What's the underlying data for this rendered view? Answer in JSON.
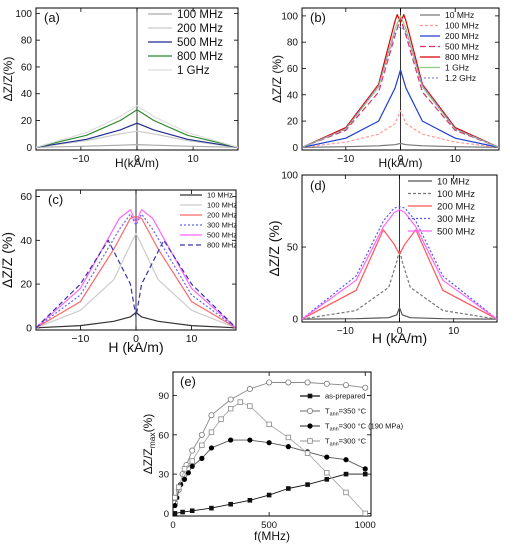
{
  "chart_data": [
    {
      "panel": "(a)",
      "type": "line",
      "xlabel": "H(kA/m)",
      "ylabel": "ΔZ/Z(%)",
      "xlim": [
        -18,
        18
      ],
      "ylim": [
        -2,
        104
      ],
      "xticks": [
        -10,
        0,
        10
      ],
      "yticks": [
        0,
        20,
        40,
        60,
        80,
        100
      ],
      "legend_position": "top-right",
      "series": [
        {
          "name": "100 MHz",
          "color": "#aaaaaa",
          "dash": "",
          "x": [
            -18,
            -9,
            -3,
            0,
            3,
            9,
            18
          ],
          "y": [
            0,
            0.8,
            1.6,
            2,
            1.6,
            0.8,
            0
          ]
        },
        {
          "name": "200 MHz",
          "color": "#cccccc",
          "dash": "",
          "x": [
            -18,
            -9,
            -3,
            0,
            3,
            9,
            18
          ],
          "y": [
            0,
            5,
            10,
            12,
            10,
            5,
            0
          ]
        },
        {
          "name": "500 MHz",
          "color": "#1f2a8c",
          "dash": "",
          "x": [
            -18,
            -9,
            -3,
            0,
            3,
            9,
            18
          ],
          "y": [
            0,
            6,
            13,
            18,
            13,
            6,
            0
          ]
        },
        {
          "name": "800 MHz",
          "color": "#2e8b2e",
          "dash": "",
          "x": [
            -18,
            -9,
            -3,
            0,
            3,
            9,
            18
          ],
          "y": [
            0,
            9,
            20,
            28,
            20,
            9,
            0
          ]
        },
        {
          "name": "1 GHz",
          "color": "#dddddd",
          "dash": "",
          "x": [
            -18,
            -9,
            -3,
            0,
            3,
            9,
            18
          ],
          "y": [
            0,
            11,
            23,
            31,
            23,
            11,
            0
          ]
        }
      ]
    },
    {
      "panel": "(b)",
      "type": "line",
      "xlabel": "H(kA/m)",
      "ylabel": "ΔZ/Z (%)",
      "xlim": [
        -18,
        18
      ],
      "ylim": [
        -2,
        106
      ],
      "xticks": [
        -10,
        0,
        10
      ],
      "yticks": [
        0,
        20,
        40,
        60,
        80,
        100
      ],
      "legend_position": "top-right",
      "series": [
        {
          "name": "10 MHz",
          "color": "#777777",
          "dash": "",
          "x": [
            -18,
            -10,
            -4,
            -1,
            0,
            1,
            4,
            10,
            18
          ],
          "y": [
            0,
            0.5,
            1.2,
            2,
            3,
            2,
            1.2,
            0.5,
            0
          ]
        },
        {
          "name": "100 MHz",
          "color": "#ff9a9a",
          "dash": "3,2",
          "x": [
            -18,
            -10,
            -4,
            -1,
            0,
            1,
            4,
            10,
            18
          ],
          "y": [
            0,
            4,
            10,
            18,
            28,
            18,
            10,
            4,
            0
          ]
        },
        {
          "name": "200 MHz",
          "color": "#1f3fd0",
          "dash": "",
          "x": [
            -18,
            -10,
            -4,
            -1,
            0,
            1,
            4,
            10,
            18
          ],
          "y": [
            0,
            7,
            20,
            45,
            59,
            45,
            20,
            7,
            0
          ]
        },
        {
          "name": "500 MHz",
          "color": "#e0306a",
          "dash": "6,3",
          "x": [
            -18,
            -10,
            -4,
            -1,
            0,
            1,
            4,
            10,
            18
          ],
          "y": [
            0,
            13,
            42,
            85,
            98,
            85,
            42,
            13,
            0
          ]
        },
        {
          "name": "800 MHz",
          "color": "#dd0000",
          "dash": "",
          "x": [
            -18,
            -10,
            -4,
            -1,
            -0.6,
            0,
            0.6,
            1,
            4,
            10,
            18
          ],
          "y": [
            0,
            15,
            48,
            96,
            101,
            95,
            101,
            96,
            48,
            15,
            0
          ]
        },
        {
          "name": "1 GHz",
          "color": "#88cc88",
          "dash": "",
          "x": [
            -18,
            -10,
            -4,
            -1,
            0,
            1,
            4,
            10,
            18
          ],
          "y": [
            0,
            14,
            46,
            90,
            100,
            90,
            46,
            14,
            0
          ]
        },
        {
          "name": "1.2 GHz",
          "color": "#8888dd",
          "dash": "2,2",
          "x": [
            -18,
            -10,
            -4,
            -1,
            0,
            1,
            4,
            10,
            18
          ],
          "y": [
            0,
            14,
            47,
            88,
            92,
            88,
            47,
            14,
            0
          ]
        }
      ]
    },
    {
      "panel": "(c)",
      "type": "line",
      "xlabel": "H (kA/m)",
      "ylabel": "ΔZ/Z (%)",
      "xlim": [
        -18,
        18
      ],
      "ylim": [
        -1,
        63
      ],
      "xticks": [
        -10,
        0,
        10
      ],
      "yticks": [
        0,
        20,
        40,
        60
      ],
      "legend_position": "top-right",
      "series": [
        {
          "name": "10 MHz",
          "color": "#333333",
          "dash": "",
          "x": [
            -18,
            -10,
            -4,
            -1,
            0,
            1,
            4,
            10,
            18
          ],
          "y": [
            0,
            1,
            3,
            5,
            7,
            5,
            3,
            1,
            0
          ]
        },
        {
          "name": "100 MHz",
          "color": "#cccccc",
          "dash": "",
          "x": [
            -18,
            -10,
            -4,
            -1,
            0,
            1,
            4,
            10,
            18
          ],
          "y": [
            0,
            8,
            22,
            38,
            43,
            38,
            22,
            8,
            0
          ]
        },
        {
          "name": "200 MHz",
          "color": "#ff6666",
          "dash": "",
          "x": [
            -18,
            -10,
            -4,
            -1,
            0,
            1,
            4,
            10,
            18
          ],
          "y": [
            0,
            12,
            36,
            50,
            51,
            50,
            36,
            12,
            0
          ]
        },
        {
          "name": "300 MHz",
          "color": "#6666ee",
          "dash": "2,2",
          "x": [
            -18,
            -10,
            -3,
            -1,
            0,
            1,
            3,
            10,
            18
          ],
          "y": [
            0,
            15,
            45,
            52,
            47,
            52,
            45,
            15,
            0
          ]
        },
        {
          "name": "500 MHz",
          "color": "#ff66ff",
          "dash": "",
          "x": [
            -18,
            -10,
            -3,
            -1,
            0,
            1,
            3,
            10,
            18
          ],
          "y": [
            0,
            18,
            50,
            54,
            48,
            54,
            50,
            18,
            0
          ]
        },
        {
          "name": "800 MHz",
          "color": "#3333aa",
          "dash": "5,3",
          "x": [
            -18,
            -10,
            -5,
            -1,
            0,
            1,
            5,
            10,
            18
          ],
          "y": [
            0,
            20,
            40,
            20,
            5,
            20,
            40,
            20,
            0
          ]
        }
      ]
    },
    {
      "panel": "(d)",
      "type": "line",
      "xlabel": "H (kA/m)",
      "ylabel": "ΔZ/Z (%)",
      "xlim": [
        -18,
        18
      ],
      "ylim": [
        -2,
        100
      ],
      "xticks": [
        -10,
        0,
        10
      ],
      "yticks": [
        0,
        50,
        100
      ],
      "legend_position": "top-right",
      "series": [
        {
          "name": "10 MHz",
          "color": "#555555",
          "dash": "",
          "x": [
            -18,
            -8,
            -2,
            -0.5,
            0,
            0.5,
            2,
            8,
            18
          ],
          "y": [
            0,
            0.3,
            1,
            3,
            8,
            3,
            1,
            0.3,
            0
          ]
        },
        {
          "name": "100 MHz",
          "color": "#777777",
          "dash": "3,2",
          "x": [
            -18,
            -8,
            -2,
            -0.5,
            0,
            0.5,
            2,
            8,
            18
          ],
          "y": [
            0,
            6,
            22,
            40,
            48,
            40,
            22,
            6,
            0
          ]
        },
        {
          "name": "200 MHz",
          "color": "#ff5555",
          "dash": "",
          "x": [
            -18,
            -8,
            -3,
            -1,
            0,
            1,
            3,
            8,
            18
          ],
          "y": [
            0,
            20,
            62,
            52,
            45,
            52,
            62,
            20,
            0
          ]
        },
        {
          "name": "300 MHz",
          "color": "#5555ee",
          "dash": "2,2",
          "x": [
            -18,
            -8,
            -3,
            -1,
            0,
            1,
            3,
            8,
            18
          ],
          "y": [
            0,
            30,
            68,
            77,
            78,
            77,
            68,
            30,
            0
          ]
        },
        {
          "name": "500 MHz",
          "color": "#ff66ff",
          "dash": "",
          "x": [
            -18,
            -8,
            -3,
            -1,
            0,
            1,
            3,
            8,
            18
          ],
          "y": [
            0,
            27,
            64,
            74,
            76,
            74,
            64,
            27,
            0
          ]
        }
      ]
    },
    {
      "panel": "(e)",
      "type": "line",
      "xlabel": "f(MHz)",
      "ylabel": "ΔZ/Z",
      "ylabel_sub": "max",
      "ylabel_suffix": "(%)",
      "xlim": [
        0,
        1030
      ],
      "ylim": [
        -2,
        108
      ],
      "xticks": [
        0,
        500,
        1000
      ],
      "yticks": [
        0,
        30,
        60,
        90
      ],
      "legend_position": "top-right",
      "series": [
        {
          "name": "as-prepared",
          "marker": "filled-square",
          "legend_sub": "",
          "legend_tail": "",
          "color": "#111111",
          "markerColor": "#111111",
          "x": [
            10,
            50,
            100,
            200,
            300,
            400,
            500,
            600,
            700,
            800,
            900,
            1000
          ],
          "y": [
            0,
            1,
            2,
            4,
            7,
            10,
            14,
            19,
            22,
            26,
            30,
            30
          ]
        },
        {
          "name": "T",
          "legend_sub": "ann",
          "legend_tail": "=350 °C",
          "marker": "open-circle",
          "color": "#888888",
          "markerColor": "#777777",
          "x": [
            10,
            30,
            50,
            70,
            100,
            150,
            200,
            300,
            400,
            500,
            600,
            700,
            800,
            900,
            1000
          ],
          "y": [
            8,
            18,
            30,
            37,
            48,
            60,
            75,
            87,
            95,
            100,
            100,
            100,
            99,
            98,
            96
          ]
        },
        {
          "name": "T",
          "legend_sub": "ann",
          "legend_tail": "=300 °C (190 MPa)",
          "marker": "filled-circle",
          "color": "#555555",
          "markerColor": "#000000",
          "x": [
            10,
            20,
            40,
            60,
            80,
            100,
            150,
            200,
            300,
            400,
            500,
            600,
            700,
            800,
            900,
            1000
          ],
          "y": [
            6,
            12,
            22,
            26,
            31,
            36,
            42,
            50,
            56,
            56,
            54,
            51,
            47,
            43,
            41,
            34
          ]
        },
        {
          "name": "T",
          "legend_sub": "ann",
          "legend_tail": "=300 °C",
          "marker": "open-square",
          "color": "#aaaaaa",
          "markerColor": "#888888",
          "x": [
            10,
            30,
            60,
            100,
            150,
            200,
            250,
            300,
            350,
            400,
            500,
            600,
            700,
            800,
            900,
            1000
          ],
          "y": [
            12,
            20,
            34,
            40,
            52,
            62,
            72,
            80,
            85,
            82,
            68,
            58,
            46,
            31,
            16,
            0
          ]
        }
      ]
    }
  ]
}
